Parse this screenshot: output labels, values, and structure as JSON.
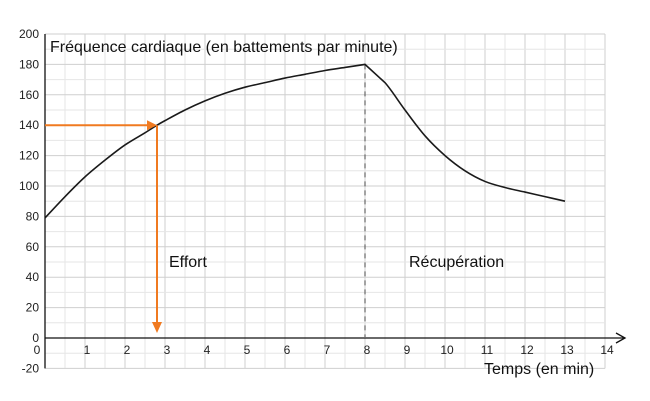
{
  "chart_data": {
    "type": "line",
    "ylabel": "Fréquence cardiaque (en battements par minute)",
    "xlabel": "Temps (en min)",
    "xlim": [
      0,
      14
    ],
    "ylim": [
      -20,
      200
    ],
    "x_ticks": [
      0,
      1,
      2,
      3,
      4,
      5,
      6,
      7,
      8,
      9,
      10,
      11,
      12,
      13,
      14
    ],
    "y_ticks": [
      -20,
      0,
      20,
      40,
      60,
      80,
      100,
      120,
      140,
      160,
      180,
      200
    ],
    "x_tick_labels": [
      "0",
      "1",
      "2",
      "3",
      "4",
      "5",
      "6",
      "7",
      "8",
      "9",
      "10",
      "11",
      "12",
      "13",
      "14"
    ],
    "y_tick_labels": [
      "-20",
      "0",
      "20",
      "40",
      "60",
      "80",
      "100",
      "120",
      "140",
      "160",
      "180",
      "200"
    ],
    "grid": true,
    "series": [
      {
        "x": [
          0,
          0.5,
          1,
          1.5,
          2,
          2.5,
          2.8,
          3,
          3.5,
          4,
          4.5,
          5,
          5.5,
          6,
          6.5,
          7,
          7.5,
          8,
          8.5,
          9,
          9.5,
          10,
          10.5,
          11,
          11.5,
          12,
          12.5,
          13
        ],
        "y": [
          79,
          93,
          106,
          117,
          127,
          135,
          140,
          143,
          150,
          156,
          161,
          165,
          168,
          171,
          173.5,
          176,
          178,
          180,
          168,
          150,
          133,
          120,
          110,
          103,
          99,
          96,
          93,
          90
        ],
        "color": "#1a1a1a"
      }
    ],
    "reference_lines": [
      {
        "type": "vertical-dashed",
        "x": 8,
        "color": "#666666"
      }
    ],
    "reading_arrows": {
      "color": "#f07a20",
      "y_value": 140,
      "x_value": 2.8
    },
    "annotations": [
      {
        "text": "Effort",
        "x": 3.1,
        "y": 50
      },
      {
        "text": "Récupération",
        "x": 9.1,
        "y": 50
      }
    ]
  }
}
